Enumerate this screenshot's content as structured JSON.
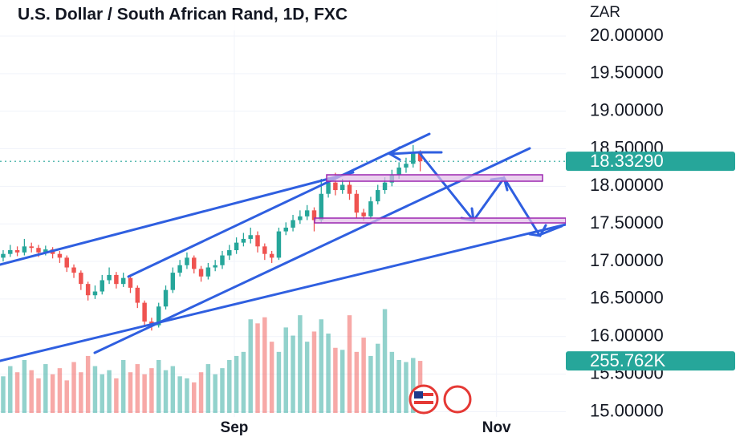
{
  "chart_data": {
    "type": "candlestick",
    "title": "U.S. Dollar / South African Rand, 1D, FXC",
    "currency": "ZAR",
    "open": [
      17.05,
      17.1,
      17.15,
      17.12,
      17.2,
      17.18,
      17.12,
      17.16,
      17.1,
      17.05,
      16.92,
      16.85,
      16.7,
      16.55,
      16.6,
      16.75,
      16.82,
      16.7,
      16.78,
      16.65,
      16.45,
      16.2,
      16.15,
      16.4,
      16.62,
      16.85,
      16.95,
      17.05,
      16.9,
      16.8,
      16.92,
      16.95,
      17.08,
      17.15,
      17.25,
      17.3,
      17.35,
      17.2,
      17.1,
      17.05,
      17.4,
      17.45,
      17.55,
      17.6,
      17.68,
      17.55,
      17.9,
      18.05,
      17.95,
      18.02,
      17.9,
      17.65,
      17.6,
      17.8,
      17.95,
      18.05,
      18.15,
      18.25,
      18.3,
      18.45
    ],
    "high": [
      17.15,
      17.22,
      17.2,
      17.3,
      17.25,
      17.22,
      17.21,
      17.19,
      17.14,
      17.08,
      16.96,
      16.88,
      16.73,
      16.68,
      16.82,
      16.92,
      16.86,
      16.85,
      16.81,
      16.68,
      16.48,
      16.25,
      16.45,
      16.68,
      16.92,
      17.02,
      17.12,
      17.08,
      16.94,
      16.98,
      17.02,
      17.14,
      17.22,
      17.32,
      17.38,
      17.45,
      17.4,
      17.24,
      17.14,
      17.45,
      17.52,
      17.62,
      17.68,
      17.75,
      17.72,
      18.1,
      18.12,
      18.18,
      18.1,
      18.08,
      17.95,
      17.7,
      17.86,
      18.02,
      18.12,
      18.22,
      18.32,
      18.38,
      18.55,
      18.48
    ],
    "low": [
      17.0,
      17.06,
      17.07,
      17.08,
      17.12,
      17.06,
      17.08,
      17.04,
      16.98,
      16.86,
      16.78,
      16.62,
      16.48,
      16.5,
      16.56,
      16.7,
      16.64,
      16.66,
      16.58,
      16.38,
      16.14,
      16.08,
      16.12,
      16.36,
      16.58,
      16.8,
      16.9,
      16.84,
      16.73,
      16.76,
      16.87,
      16.9,
      17.02,
      17.1,
      17.2,
      17.24,
      17.12,
      17.02,
      16.98,
      17.02,
      17.35,
      17.4,
      17.5,
      17.55,
      17.4,
      17.52,
      17.85,
      17.88,
      17.9,
      17.82,
      17.58,
      17.54,
      17.56,
      17.76,
      17.9,
      18.0,
      18.1,
      18.18,
      18.25,
      18.2
    ],
    "close": [
      17.1,
      17.15,
      17.12,
      17.2,
      17.18,
      17.12,
      17.16,
      17.1,
      17.05,
      16.92,
      16.85,
      16.7,
      16.55,
      16.6,
      16.75,
      16.82,
      16.7,
      16.78,
      16.65,
      16.45,
      16.2,
      16.15,
      16.4,
      16.62,
      16.85,
      16.95,
      17.05,
      16.9,
      16.8,
      16.92,
      16.95,
      17.08,
      17.15,
      17.25,
      17.3,
      17.35,
      17.2,
      17.1,
      17.05,
      17.4,
      17.45,
      17.55,
      17.6,
      17.68,
      17.55,
      17.9,
      18.05,
      17.95,
      18.02,
      17.9,
      17.65,
      17.6,
      17.8,
      17.95,
      18.05,
      18.15,
      18.25,
      18.3,
      18.45,
      18.3329
    ],
    "volume": [
      180000,
      230000,
      200000,
      260000,
      210000,
      170000,
      240000,
      190000,
      220000,
      160000,
      250000,
      200000,
      280000,
      230000,
      190000,
      210000,
      170000,
      260000,
      200000,
      240000,
      190000,
      220000,
      260000,
      210000,
      230000,
      180000,
      170000,
      150000,
      200000,
      240000,
      190000,
      220000,
      260000,
      280000,
      300000,
      460000,
      440000,
      470000,
      350000,
      300000,
      420000,
      380000,
      480000,
      350000,
      400000,
      460000,
      390000,
      320000,
      310000,
      480000,
      300000,
      370000,
      280000,
      340000,
      510000,
      300000,
      260000,
      250000,
      270000,
      255762
    ],
    "up_color": "#26a69a",
    "down_color": "#ef5350",
    "last_price": {
      "value": 18.3329,
      "label": "18.33290"
    },
    "last_volume": {
      "value": 255762,
      "label": "255.762K"
    },
    "ylim": [
      14.93,
      20.48
    ],
    "yticks": [
      {
        "value": 15,
        "label": "15.00000"
      },
      {
        "value": 15.5,
        "label": "15.50000"
      },
      {
        "value": 16,
        "label": "16.00000"
      },
      {
        "value": 16.5,
        "label": "16.50000"
      },
      {
        "value": 17,
        "label": "17.00000"
      },
      {
        "value": 17.5,
        "label": "17.50000"
      },
      {
        "value": 18,
        "label": "18.00000"
      },
      {
        "value": 18.5,
        "label": "18.50000"
      },
      {
        "value": 19,
        "label": "19.00000"
      },
      {
        "value": 19.5,
        "label": "19.50000"
      },
      {
        "value": 20,
        "label": "20.00000"
      }
    ],
    "xlim": [
      -0.45,
      79.6
    ],
    "xticks": [
      {
        "value": 32.7,
        "label": "Sep"
      },
      {
        "value": 69.8,
        "label": "Nov"
      }
    ],
    "volume_ylim": [
      0,
      1300000
    ],
    "grid": true
  }
}
